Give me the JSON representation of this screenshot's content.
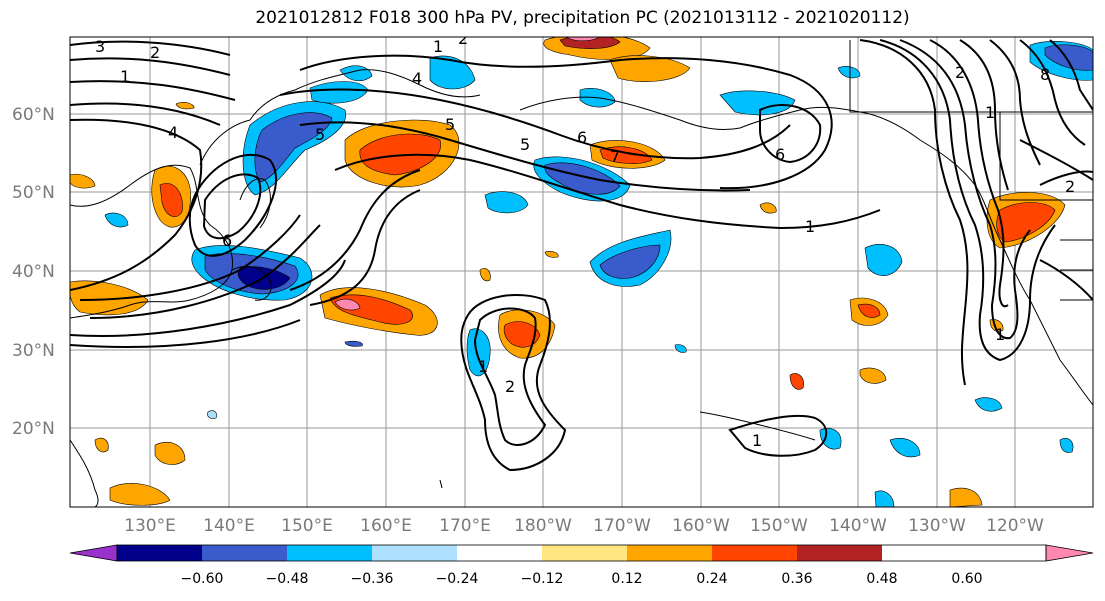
{
  "title": "2021012812 F018 300 hPa PV, precipitation PC (2021013112 - 2021020112)",
  "lat_labels": [
    "60°N",
    "50°N",
    "40°N",
    "30°N",
    "20°N"
  ],
  "lon_labels": [
    "130°E",
    "140°E",
    "150°E",
    "160°E",
    "170°E",
    "180°W",
    "170°W",
    "160°W",
    "150°W",
    "140°W",
    "130°W",
    "120°W"
  ],
  "colorbar": {
    "ticks": [
      "−0.60",
      "−0.48",
      "−0.36",
      "−0.24",
      "−0.12",
      "0.12",
      "0.24",
      "0.36",
      "0.48",
      "0.60"
    ],
    "colors": [
      "#9932CC",
      "#00008B",
      "#3A5BCC",
      "#00BFFF",
      "#ADDFFF",
      "#FFFFFF",
      "#FFE680",
      "#FFA500",
      "#FF4500",
      "#B22222",
      "#FF88B0"
    ]
  },
  "pv_contour_labels": [
    "3",
    "2",
    "1",
    "4",
    "1",
    "2",
    "5",
    "4",
    "5",
    "5",
    "6",
    "7",
    "6",
    "6",
    "1",
    "1",
    "2",
    "1",
    "2",
    "1",
    "8",
    "2",
    "1"
  ]
}
